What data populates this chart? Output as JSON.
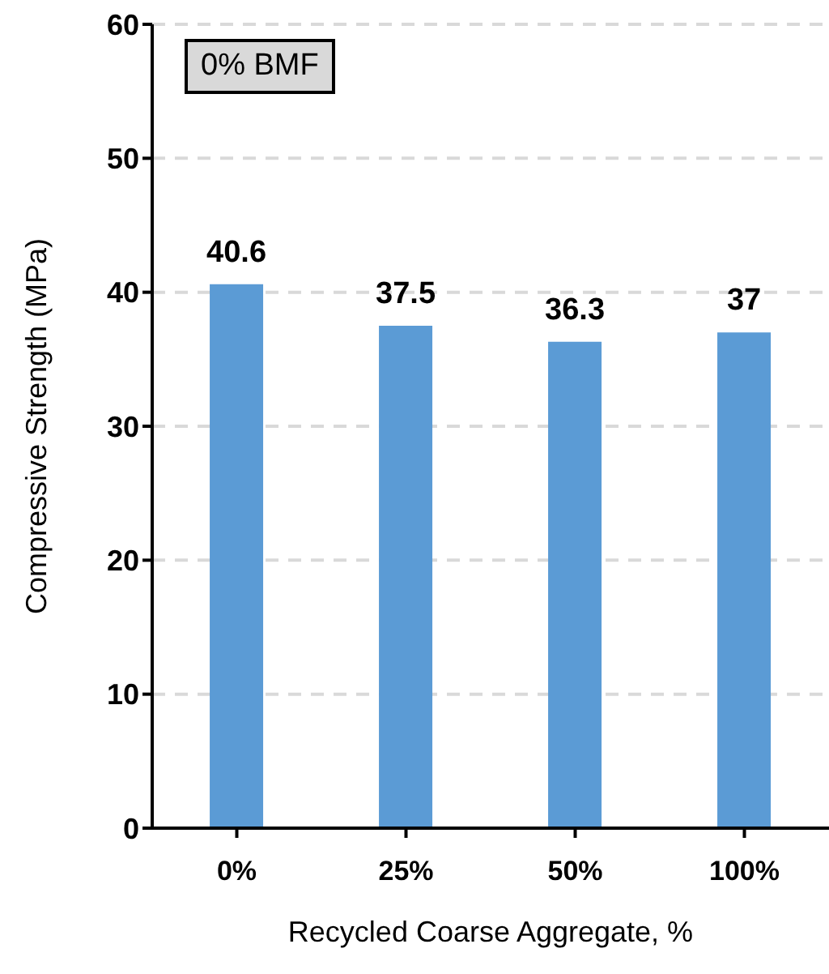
{
  "chart_data": {
    "type": "bar",
    "xlabel": "Recycled Coarse Aggregate, %",
    "ylabel": "Compressive Strength (MPa)",
    "annotations": [
      "0% BMF"
    ],
    "categories": [
      "0%",
      "25%",
      "50%",
      "100%"
    ],
    "values": [
      40.6,
      37.5,
      36.3,
      37
    ],
    "color": "#5b9bd5",
    "data_labels": true,
    "ylim": [
      0,
      60
    ],
    "yticks": [
      0,
      10,
      20,
      30,
      40,
      50,
      60
    ],
    "grid": "y"
  }
}
